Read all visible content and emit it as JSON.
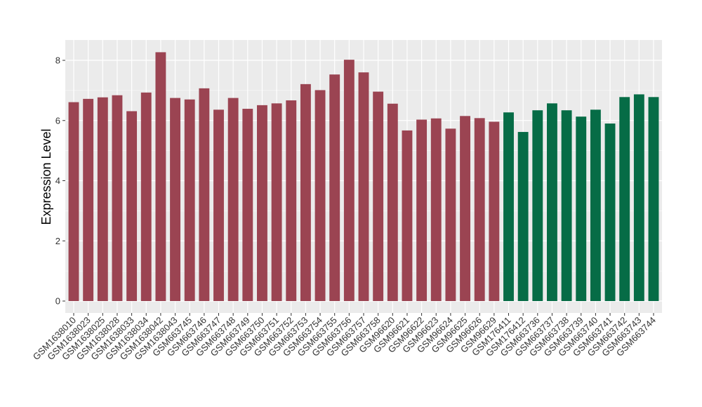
{
  "chart_data": {
    "type": "bar",
    "title": "",
    "xlabel": "",
    "ylabel": "Expression Level",
    "ylim": [
      0,
      8.6
    ],
    "yticks": [
      0,
      2,
      4,
      6,
      8
    ],
    "grid": true,
    "background": "#ebebeb",
    "gridline_color": "#ffffff",
    "categories": [
      "GSM1638010",
      "GSM1638023",
      "GSM1638025",
      "GSM1638028",
      "GSM1638033",
      "GSM1638034",
      "GSM1638042",
      "GSM1638043",
      "GSM663745",
      "GSM663746",
      "GSM663747",
      "GSM663748",
      "GSM663749",
      "GSM663750",
      "GSM663751",
      "GSM663752",
      "GSM663753",
      "GSM663754",
      "GSM663755",
      "GSM663756",
      "GSM663757",
      "GSM663758",
      "GSM96620",
      "GSM96621",
      "GSM96622",
      "GSM96623",
      "GSM96624",
      "GSM96625",
      "GSM96626",
      "GSM96629",
      "GSM176411",
      "GSM176412",
      "GSM663736",
      "GSM663737",
      "GSM663738",
      "GSM663739",
      "GSM663740",
      "GSM663741",
      "GSM663742",
      "GSM663743",
      "GSM663744"
    ],
    "values": [
      6.61,
      6.72,
      6.77,
      6.84,
      6.31,
      6.93,
      8.27,
      6.75,
      6.7,
      7.07,
      6.36,
      6.75,
      6.39,
      6.51,
      6.57,
      6.67,
      7.21,
      7.01,
      7.53,
      8.02,
      7.6,
      6.96,
      6.56,
      5.67,
      6.03,
      6.07,
      5.73,
      6.15,
      6.08,
      5.96,
      6.27,
      5.62,
      6.34,
      6.57,
      6.34,
      6.13,
      6.36,
      5.9,
      6.78,
      6.87,
      6.78
    ],
    "groups": [
      "1",
      "1",
      "1",
      "1",
      "1",
      "1",
      "1",
      "1",
      "1",
      "1",
      "1",
      "1",
      "1",
      "1",
      "1",
      "1",
      "1",
      "1",
      "1",
      "1",
      "1",
      "1",
      "1",
      "1",
      "1",
      "1",
      "1",
      "1",
      "1",
      "1",
      "2",
      "2",
      "2",
      "2",
      "2",
      "2",
      "2",
      "2",
      "2",
      "2",
      "2"
    ],
    "group_colors": {
      "1": "#9b4452",
      "2": "#066c46"
    }
  }
}
